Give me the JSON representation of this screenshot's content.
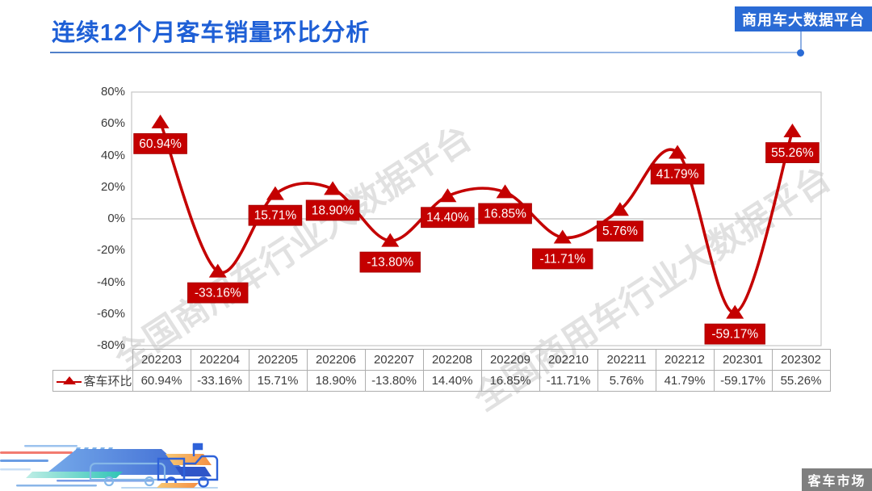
{
  "header": {
    "title": "连续12个月客车销量环比分析",
    "badge": "商用车大数据平台"
  },
  "watermark": {
    "text": "全国商用车行业大数据平台"
  },
  "chart_data": {
    "type": "line",
    "title": "连续12个月客车销量环比分析",
    "categories": [
      "202203",
      "202204",
      "202205",
      "202206",
      "202207",
      "202208",
      "202209",
      "202210",
      "202211",
      "202212",
      "202301",
      "202302"
    ],
    "series": [
      {
        "name": "客车环比",
        "values": [
          60.94,
          -33.16,
          15.71,
          18.9,
          -13.8,
          14.4,
          16.85,
          -11.71,
          5.76,
          41.79,
          -59.17,
          55.26
        ],
        "labels": [
          "60.94%",
          "-33.16%",
          "15.71%",
          "18.90%",
          "-13.80%",
          "14.40%",
          "16.85%",
          "-11.71%",
          "5.76%",
          "41.79%",
          "-59.17%",
          "55.26%"
        ]
      }
    ],
    "ylim": [
      -80,
      80
    ],
    "ytick_labels": [
      "80%",
      "60%",
      "40%",
      "20%",
      "0%",
      "-20%",
      "-40%",
      "-60%",
      "-80%"
    ],
    "grid": "zero-line-only",
    "smooth": true,
    "marker": "triangle-up",
    "line_color": "#C40000",
    "label_box_color": "#C40000",
    "label_text_color": "#FFFFFF",
    "legend_position": "table-left"
  },
  "footer": {
    "market_label": "客车市场",
    "decoration_icons": [
      "speed-lines-icon",
      "bus-icon",
      "truck-icon"
    ]
  },
  "colors": {
    "title_blue": "#1E5FD6",
    "badge_blue": "#2A6BD5",
    "series_red": "#C40000",
    "table_border": "#AEAEAE",
    "zero_line_gray": "#BDBDBD",
    "market_tag_gray": "#7F7F7F"
  }
}
